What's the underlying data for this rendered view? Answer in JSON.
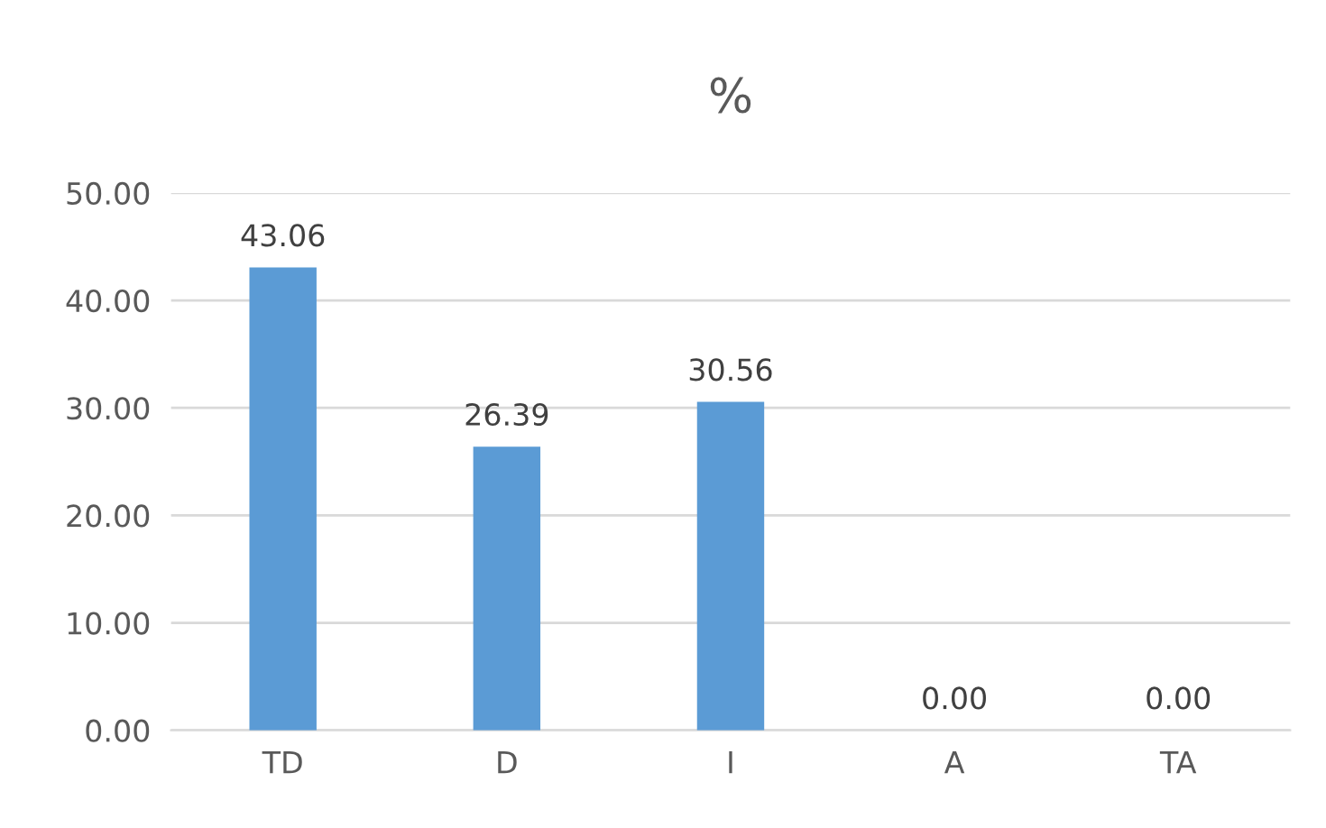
{
  "chart_data": {
    "type": "bar",
    "title": "%",
    "categories": [
      "TD",
      "D",
      "I",
      "A",
      "TA"
    ],
    "values": [
      43.06,
      26.39,
      30.56,
      0,
      0
    ],
    "value_labels": [
      "43.06",
      "26.39",
      "30.56",
      "0.00",
      "0.00"
    ],
    "color": "#5b9bd5",
    "ylim": [
      0,
      50
    ],
    "yticks": [
      {
        "value": 0,
        "label": "0.00"
      },
      {
        "value": 10,
        "label": "10.00"
      },
      {
        "value": 20,
        "label": "20.00"
      },
      {
        "value": 30,
        "label": "30.00"
      },
      {
        "value": 40,
        "label": "40.00"
      },
      {
        "value": 50,
        "label": "50.00"
      }
    ],
    "grid": "y",
    "legend": false
  }
}
